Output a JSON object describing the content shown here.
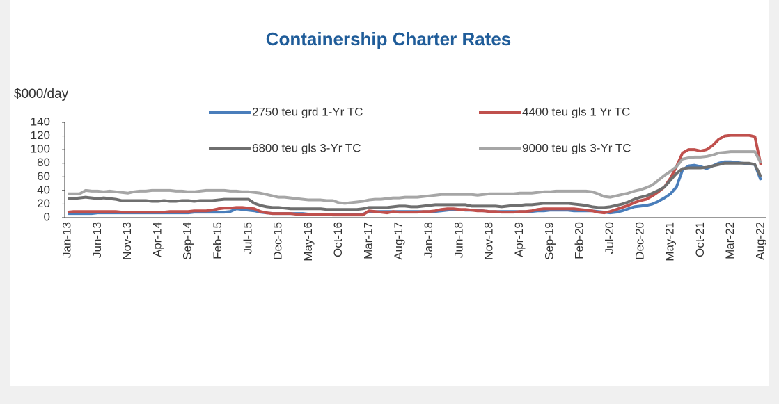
{
  "chart_data": {
    "type": "line",
    "title": "Containership Charter Rates",
    "y_label": "$000/day",
    "categories": [
      "Jan-13",
      null,
      null,
      null,
      null,
      "Jun-13",
      null,
      null,
      null,
      null,
      "Nov-13",
      null,
      null,
      null,
      null,
      "Apr-14",
      null,
      null,
      null,
      null,
      "Sep-14",
      null,
      null,
      null,
      null,
      "Feb-15",
      null,
      null,
      null,
      null,
      "Jul-15",
      null,
      null,
      null,
      null,
      "Dec-15",
      null,
      null,
      null,
      null,
      "May-16",
      null,
      null,
      null,
      null,
      "Oct-16",
      null,
      null,
      null,
      null,
      "Mar-17",
      null,
      null,
      null,
      null,
      "Aug-17",
      null,
      null,
      null,
      null,
      "Jan-18",
      null,
      null,
      null,
      null,
      "Jun-18",
      null,
      null,
      null,
      null,
      "Nov-18",
      null,
      null,
      null,
      null,
      "Apr-19",
      null,
      null,
      null,
      null,
      "Sep-19",
      null,
      null,
      null,
      null,
      "Feb-20",
      null,
      null,
      null,
      null,
      "Jul-20",
      null,
      null,
      null,
      null,
      "Dec-20",
      null,
      null,
      null,
      null,
      "May-21",
      null,
      null,
      null,
      null,
      "Oct-21",
      null,
      null,
      null,
      null,
      "Mar-22",
      null,
      null,
      null,
      null,
      "Aug-22"
    ],
    "series": [
      {
        "name": "2750 teu grd 1-Yr TC",
        "color": "#4a7ebb",
        "values": [
          6,
          6,
          6,
          6,
          6,
          7,
          7,
          7,
          7,
          7,
          7,
          7,
          7,
          7,
          7,
          7,
          7,
          7,
          7,
          7,
          7,
          8,
          8,
          8,
          8,
          8,
          8,
          9,
          13,
          12,
          11,
          10,
          8,
          7,
          6,
          6,
          6,
          6,
          6,
          6,
          5,
          5,
          5,
          5,
          5,
          5,
          5,
          5,
          5,
          5,
          9,
          9,
          9,
          9,
          9,
          9,
          9,
          9,
          9,
          9,
          9,
          9,
          10,
          11,
          12,
          12,
          11,
          11,
          11,
          10,
          9,
          9,
          9,
          9,
          9,
          9,
          9,
          9,
          10,
          10,
          11,
          11,
          11,
          11,
          10,
          10,
          10,
          10,
          9,
          8,
          7,
          8,
          10,
          13,
          16,
          17,
          18,
          20,
          24,
          29,
          35,
          45,
          70,
          76,
          77,
          75,
          72,
          76,
          80,
          82,
          82,
          81,
          80,
          79,
          78,
          55
        ]
      },
      {
        "name": "4400 teu gls 1 Yr TC",
        "color": "#c0504d",
        "values": [
          8,
          9,
          9,
          9,
          9,
          9,
          9,
          9,
          9,
          8,
          8,
          8,
          8,
          8,
          8,
          8,
          8,
          9,
          9,
          9,
          9,
          10,
          10,
          10,
          11,
          13,
          14,
          14,
          15,
          15,
          14,
          13,
          9,
          7,
          6,
          6,
          6,
          6,
          5,
          5,
          5,
          5,
          5,
          5,
          4,
          4,
          4,
          4,
          4,
          4,
          10,
          9,
          8,
          7,
          9,
          8,
          8,
          8,
          8,
          9,
          9,
          10,
          12,
          13,
          13,
          12,
          12,
          11,
          10,
          10,
          9,
          9,
          8,
          8,
          8,
          9,
          9,
          10,
          12,
          13,
          13,
          13,
          13,
          13,
          13,
          12,
          11,
          10,
          8,
          7,
          9,
          12,
          15,
          18,
          22,
          25,
          27,
          32,
          38,
          45,
          58,
          75,
          95,
          100,
          100,
          98,
          100,
          106,
          115,
          120,
          121,
          121,
          121,
          121,
          119,
          77
        ]
      },
      {
        "name": "6800 teu gls 3-Yr TC",
        "color": "#6f6f6f",
        "values": [
          28,
          28,
          29,
          30,
          29,
          28,
          29,
          28,
          27,
          25,
          25,
          25,
          25,
          25,
          24,
          24,
          25,
          24,
          24,
          25,
          25,
          24,
          25,
          25,
          25,
          26,
          27,
          27,
          27,
          27,
          27,
          21,
          18,
          16,
          15,
          15,
          14,
          13,
          13,
          13,
          13,
          13,
          13,
          12,
          12,
          12,
          12,
          12,
          12,
          13,
          15,
          15,
          15,
          15,
          16,
          17,
          17,
          16,
          16,
          17,
          18,
          19,
          19,
          19,
          19,
          19,
          19,
          17,
          17,
          17,
          17,
          17,
          16,
          17,
          18,
          18,
          19,
          19,
          20,
          21,
          21,
          21,
          21,
          21,
          20,
          19,
          18,
          16,
          15,
          15,
          16,
          18,
          20,
          23,
          27,
          30,
          32,
          36,
          40,
          45,
          55,
          65,
          72,
          73,
          73,
          73,
          74,
          76,
          78,
          80,
          80,
          80,
          80,
          80,
          78,
          60
        ]
      },
      {
        "name": "9000 teu gls 3-Yr TC",
        "color": "#a6a6a6",
        "values": [
          35,
          35,
          35,
          40,
          39,
          39,
          38,
          39,
          38,
          37,
          36,
          38,
          39,
          39,
          40,
          40,
          40,
          40,
          39,
          39,
          38,
          38,
          39,
          40,
          40,
          40,
          40,
          39,
          39,
          38,
          38,
          37,
          36,
          34,
          32,
          30,
          30,
          29,
          28,
          27,
          26,
          26,
          26,
          25,
          25,
          22,
          21,
          22,
          23,
          24,
          26,
          27,
          27,
          28,
          29,
          29,
          30,
          30,
          30,
          31,
          32,
          33,
          34,
          34,
          34,
          34,
          34,
          34,
          33,
          34,
          35,
          35,
          35,
          35,
          35,
          36,
          36,
          36,
          37,
          38,
          38,
          39,
          39,
          39,
          39,
          39,
          39,
          38,
          35,
          31,
          30,
          32,
          34,
          36,
          39,
          41,
          44,
          48,
          55,
          62,
          68,
          75,
          86,
          88,
          89,
          89,
          90,
          92,
          95,
          96,
          97,
          97,
          97,
          97,
          97,
          80
        ]
      }
    ],
    "ylim": [
      0,
      140
    ],
    "yticks": [
      0,
      20,
      40,
      60,
      80,
      100,
      120,
      140
    ],
    "grid": false,
    "legend": "top"
  }
}
